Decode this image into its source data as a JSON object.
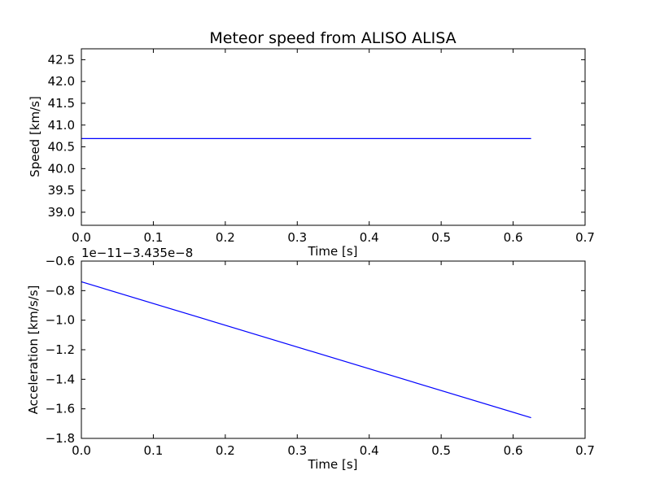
{
  "chart_data": [
    {
      "type": "line",
      "title": "Meteor speed from  ALISO ALISA",
      "xlabel": "Time [s]",
      "ylabel": "Speed [km/s]",
      "xlim": [
        0.0,
        0.7
      ],
      "ylim": [
        38.7,
        42.75
      ],
      "xticks": [
        0.0,
        0.1,
        0.2,
        0.3,
        0.4,
        0.5,
        0.6,
        0.7
      ],
      "xtick_labels": [
        "0.0",
        "0.1",
        "0.2",
        "0.3",
        "0.4",
        "0.5",
        "0.6",
        "0.7"
      ],
      "yticks": [
        39.0,
        39.5,
        40.0,
        40.5,
        41.0,
        41.5,
        42.0,
        42.5
      ],
      "ytick_labels": [
        "39.0",
        "39.5",
        "40.0",
        "40.5",
        "41.0",
        "41.5",
        "42.0",
        "42.5"
      ],
      "grid": false,
      "series": [
        {
          "x": [
            0.0,
            0.625
          ],
          "y": [
            40.69,
            40.69
          ],
          "color": "#0000ff"
        }
      ]
    },
    {
      "type": "line",
      "title": "",
      "xlabel": "Time [s]",
      "ylabel": "Acceleration [km/s/s]",
      "offset_text": "1e−11−3.435e−8",
      "xlim": [
        0.0,
        0.7
      ],
      "ylim": [
        -1.8,
        -0.6
      ],
      "xticks": [
        0.0,
        0.1,
        0.2,
        0.3,
        0.4,
        0.5,
        0.6,
        0.7
      ],
      "xtick_labels": [
        "0.0",
        "0.1",
        "0.2",
        "0.3",
        "0.4",
        "0.5",
        "0.6",
        "0.7"
      ],
      "yticks": [
        -1.8,
        -1.6,
        -1.4,
        -1.2,
        -1.0,
        -0.8,
        -0.6
      ],
      "ytick_labels": [
        "−1.8",
        "−1.6",
        "−1.4",
        "−1.2",
        "−1.0",
        "−0.8",
        "−0.6"
      ],
      "grid": false,
      "series": [
        {
          "x": [
            0.0,
            0.625
          ],
          "y": [
            -0.74,
            -1.66
          ],
          "color": "#0000ff"
        }
      ]
    }
  ]
}
